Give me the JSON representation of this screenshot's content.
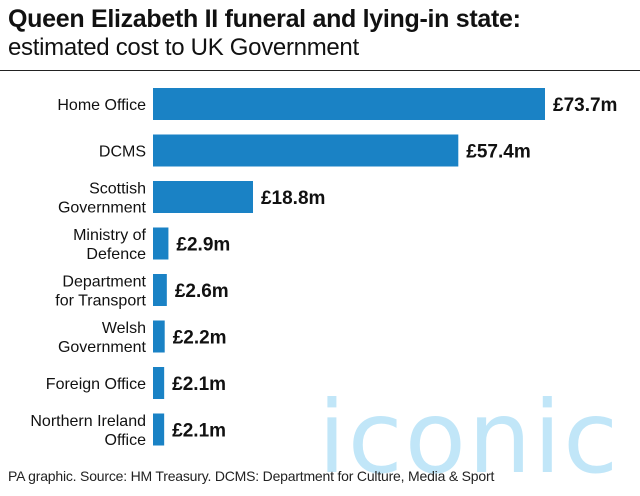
{
  "chart_data": {
    "type": "bar",
    "orientation": "horizontal",
    "title": "Queen Elizabeth II funeral and lying-in state:",
    "subtitle": "estimated cost to UK Government",
    "categories": [
      [
        "Home Office"
      ],
      [
        "DCMS"
      ],
      [
        "Scottish",
        "Government"
      ],
      [
        "Ministry of",
        "Defence"
      ],
      [
        "Department",
        "for Transport"
      ],
      [
        "Welsh",
        "Government"
      ],
      [
        "Foreign Office"
      ],
      [
        "Northern Ireland",
        "Office"
      ]
    ],
    "values": [
      73.7,
      57.4,
      18.8,
      2.9,
      2.6,
      2.2,
      2.1,
      2.1
    ],
    "value_labels": [
      "£73.7m",
      "£57.4m",
      "£18.8m",
      "£2.9m",
      "£2.6m",
      "£2.2m",
      "£2.1m",
      "£2.1m"
    ],
    "unit": "£m",
    "xlim": [
      0,
      73.7
    ],
    "grid": false,
    "bar_color": "#1a82c5"
  },
  "footer": {
    "source": "PA graphic. Source: HM Treasury. DCMS: Department for Culture, Media & Sport"
  },
  "watermark": {
    "text": "iconic",
    "color": "#8fd3f3"
  }
}
